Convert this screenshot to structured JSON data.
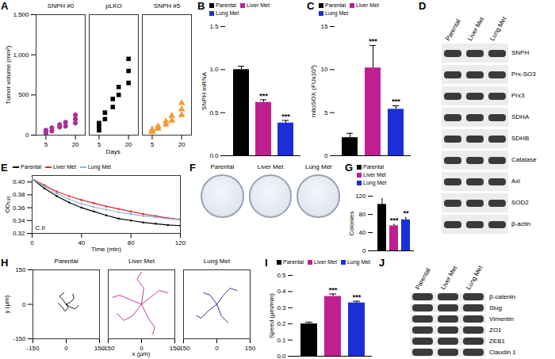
{
  "chart_data": [
    {
      "panel": "A",
      "type": "scatter",
      "y_label": "Tumor volume (mm³)",
      "x_label": "Days",
      "xlim": [
        0,
        25
      ],
      "xticks": [
        5,
        20
      ],
      "ylim": [
        0,
        1500
      ],
      "yticks": [
        0,
        500,
        {
          "value": 1000,
          "label": "1,000"
        },
        {
          "value": 1500,
          "label": "1,500"
        }
      ],
      "series": [
        {
          "name": "SNPH #0",
          "color": "#a8329c",
          "marker": "circle",
          "x": [
            5,
            5,
            5,
            8,
            8,
            12,
            12,
            15,
            15,
            20,
            20,
            20
          ],
          "values": [
            20,
            40,
            60,
            50,
            90,
            100,
            130,
            110,
            160,
            150,
            200,
            250
          ]
        },
        {
          "name": "pLKO",
          "color": "#000000",
          "marker": "square",
          "x": [
            5,
            5,
            5,
            8,
            8,
            12,
            12,
            15,
            15,
            20,
            20,
            20
          ],
          "values": [
            60,
            100,
            150,
            200,
            280,
            350,
            450,
            500,
            600,
            650,
            800,
            950
          ]
        },
        {
          "name": "SNPH #5",
          "color": "#f39a36",
          "marker": "triangle",
          "x": [
            5,
            5,
            5,
            8,
            8,
            12,
            12,
            15,
            15,
            20,
            20,
            20
          ],
          "values": [
            40,
            50,
            70,
            80,
            110,
            130,
            170,
            180,
            240,
            250,
            320,
            400
          ]
        }
      ]
    },
    {
      "panel": "B",
      "type": "bar",
      "y_label": "SNPH mRNA",
      "categories": [
        "Parental",
        "Liver Met",
        "Lung Met"
      ],
      "values": [
        1.0,
        0.62,
        0.38
      ],
      "errors": [
        0.04,
        0.03,
        0.03
      ],
      "colors": [
        "#000000",
        "#c0208f",
        "#1a2fd6"
      ],
      "annotations": [
        null,
        "***",
        "***"
      ],
      "ylim": [
        0,
        1.5
      ],
      "yticks": [
        {
          "value": 0,
          "label": "0.0"
        },
        0.5,
        {
          "value": 1,
          "label": "1.0"
        },
        1.5
      ],
      "legend": "top",
      "tick_labels": "y"
    },
    {
      "panel": "C",
      "type": "bar",
      "y_label": "mitoSOX (FUx10³)",
      "categories": [
        "Parental",
        "Liver Met",
        "Lung Met"
      ],
      "values": [
        2.1,
        10.2,
        5.4
      ],
      "errors": [
        0.5,
        2.6,
        0.4
      ],
      "colors": [
        "#000000",
        "#c0208f",
        "#1a2fd6"
      ],
      "annotations": [
        null,
        "***",
        "***"
      ],
      "ylim": [
        0,
        15
      ],
      "yticks": [
        0,
        5,
        10,
        15
      ],
      "legend": "top",
      "tick_labels": "y"
    },
    {
      "panel": "E",
      "type": "line",
      "y_label": "OD₅₉₅",
      "x_label": "Time (min)",
      "x": [
        0,
        10,
        20,
        30,
        40,
        50,
        60,
        70,
        80,
        90,
        100,
        110,
        120
      ],
      "xlim": [
        0,
        120
      ],
      "xticks": [
        0,
        40,
        80,
        120
      ],
      "ylim": [
        0.32,
        0.41
      ],
      "yticks": [
        0.32,
        0.34,
        0.36,
        0.38,
        {
          "value": 0.4,
          "label": "0.40"
        }
      ],
      "annotation": "C.II",
      "legend": "top",
      "series": [
        {
          "name": "Parental",
          "color": "#000000",
          "values": [
            0.405,
            0.39,
            0.378,
            0.368,
            0.36,
            0.354,
            0.348,
            0.343,
            0.34,
            0.337,
            0.335,
            0.333,
            0.332
          ]
        },
        {
          "name": "Liver Met",
          "color": "#e0282f",
          "values": [
            0.405,
            0.395,
            0.385,
            0.378,
            0.372,
            0.367,
            0.362,
            0.358,
            0.354,
            0.35,
            0.347,
            0.344,
            0.342
          ]
        },
        {
          "name": "Lung Met",
          "color": "#8fb3e0",
          "values": [
            0.405,
            0.393,
            0.382,
            0.373,
            0.366,
            0.361,
            0.357,
            0.353,
            0.35,
            0.347,
            0.345,
            0.343,
            0.341
          ]
        }
      ]
    },
    {
      "panel": "G",
      "type": "bar",
      "y_label": "Colonies",
      "categories": [
        "Parental",
        "Liver Met",
        "Lung Met"
      ],
      "values": [
        102,
        55,
        68
      ],
      "errors": [
        12,
        3,
        5
      ],
      "colors": [
        "#000000",
        "#c0208f",
        "#1a2fd6"
      ],
      "annotations": [
        null,
        "***",
        "**"
      ],
      "ylim": [
        0,
        120
      ],
      "yticks": [
        0,
        40,
        80,
        120
      ],
      "legend": "top",
      "tick_labels": "y"
    },
    {
      "panel": "H",
      "type": "line",
      "x_label": "x (µm)",
      "y_label": "y (µm)",
      "xlim": [
        -150,
        150
      ],
      "xticks": [
        -150,
        0,
        150
      ],
      "ylim": [
        -150,
        150
      ],
      "yticks": [
        -150,
        0,
        150
      ],
      "series": [
        {
          "name": "Parental",
          "color": "#000000",
          "tracks": [
            {
              "x": [
                0,
                10,
                -5,
                -20,
                -35
              ],
              "y": [
                0,
                -15,
                -30,
                -10,
                5
              ]
            },
            {
              "x": [
                0,
                20,
                35,
                30
              ],
              "y": [
                0,
                10,
                25,
                45
              ]
            },
            {
              "x": [
                0,
                -15,
                -30,
                -10
              ],
              "y": [
                0,
                20,
                35,
                50
              ]
            },
            {
              "x": [
                0,
                15,
                40,
                55
              ],
              "y": [
                0,
                -10,
                -20,
                -5
              ]
            }
          ]
        },
        {
          "name": "Liver Met",
          "color": "#c0208f",
          "tracks": [
            {
              "x": [
                0,
                40,
                80,
                120
              ],
              "y": [
                0,
                30,
                60,
                50
              ]
            },
            {
              "x": [
                0,
                -50,
                -100,
                -130
              ],
              "y": [
                0,
                20,
                40,
                30
              ]
            },
            {
              "x": [
                0,
                30,
                60,
                50
              ],
              "y": [
                0,
                -60,
                -100,
                -130
              ]
            },
            {
              "x": [
                0,
                -40,
                -80,
                -110
              ],
              "y": [
                0,
                -50,
                -70,
                -40
              ]
            },
            {
              "x": [
                0,
                10,
                -20,
                0
              ],
              "y": [
                0,
                70,
                110,
                140
              ]
            }
          ]
        },
        {
          "name": "Lung Met",
          "color": "#1a237e",
          "tracks": [
            {
              "x": [
                0,
                30,
                60,
                90
              ],
              "y": [
                0,
                40,
                70,
                60
              ]
            },
            {
              "x": [
                0,
                -40,
                -70,
                -90
              ],
              "y": [
                0,
                -30,
                -60,
                -50
              ]
            },
            {
              "x": [
                0,
                20,
                50
              ],
              "y": [
                0,
                -50,
                -80
              ]
            },
            {
              "x": [
                0,
                -30,
                -60
              ],
              "y": [
                0,
                40,
                50
              ]
            }
          ]
        }
      ]
    },
    {
      "panel": "I",
      "type": "bar",
      "y_label": "Speed (µm/min)",
      "categories": [
        "Parental",
        "Liver Met",
        "Lung Met"
      ],
      "values": [
        0.2,
        0.37,
        0.33
      ],
      "errors": [
        0.01,
        0.015,
        0.01
      ],
      "colors": [
        "#000000",
        "#c0208f",
        "#1a2fd6"
      ],
      "annotations": [
        null,
        "***",
        "***"
      ],
      "ylim": [
        0,
        0.5
      ],
      "yticks": [
        {
          "value": 0,
          "label": "0.0"
        },
        0.1,
        0.2,
        0.3,
        0.4,
        0.5
      ],
      "legend": "top",
      "tick_labels": "y"
    }
  ],
  "images": {
    "panel": "F",
    "plates": [
      "Parental",
      "Liver Met",
      "Lung Met"
    ]
  },
  "blots": [
    {
      "panel": "D",
      "lanes": [
        "Parental",
        "Liver Met",
        "Lung Met"
      ],
      "proteins": [
        "SNPH",
        "Prx-SO3",
        "Prx3",
        "SDHA",
        "SDHB",
        "Catalase",
        "Axl",
        "SOD2",
        "β-actin"
      ]
    },
    {
      "panel": "J",
      "lanes": [
        "Parental",
        "Liver Met",
        "Lung Met"
      ],
      "proteins": [
        "β-catenin",
        "Slug",
        "Vimentin",
        "ZO1",
        "ZEB1",
        "Claudin 1"
      ]
    }
  ]
}
